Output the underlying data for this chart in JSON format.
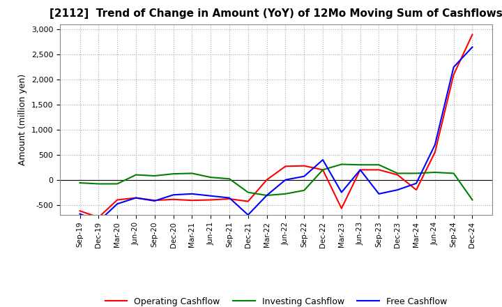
{
  "title": "[2112]  Trend of Change in Amount (YoY) of 12Mo Moving Sum of Cashflows",
  "ylabel": "Amount (million yen)",
  "ylim": [
    -700,
    3100
  ],
  "yticks": [
    -500,
    0,
    500,
    1000,
    1500,
    2000,
    2500,
    3000
  ],
  "background_color": "#ffffff",
  "grid_color": "#aaaaaa",
  "x_labels": [
    "Sep-19",
    "Dec-19",
    "Mar-20",
    "Jun-20",
    "Sep-20",
    "Dec-20",
    "Mar-21",
    "Jun-21",
    "Sep-21",
    "Dec-21",
    "Mar-22",
    "Jun-22",
    "Sep-22",
    "Dec-22",
    "Mar-23",
    "Jun-23",
    "Sep-23",
    "Dec-23",
    "Mar-24",
    "Jun-24",
    "Sep-24",
    "Dec-24"
  ],
  "operating_cashflow": [
    -620,
    -750,
    -400,
    -360,
    -410,
    -390,
    -410,
    -400,
    -380,
    -430,
    0,
    270,
    280,
    200,
    -570,
    200,
    200,
    100,
    -200,
    550,
    2100,
    2900
  ],
  "investing_cashflow": [
    -60,
    -80,
    -80,
    100,
    80,
    120,
    130,
    50,
    20,
    -250,
    -310,
    -280,
    -210,
    200,
    310,
    300,
    300,
    130,
    130,
    150,
    130,
    -400
  ],
  "free_cashflow": [
    -680,
    -830,
    -480,
    -360,
    -420,
    -300,
    -280,
    -320,
    -360,
    -700,
    -310,
    0,
    70,
    400,
    -250,
    200,
    -280,
    -200,
    -70,
    700,
    2250,
    2650
  ],
  "operating_color": "#ff0000",
  "investing_color": "#008000",
  "free_color": "#0000ff",
  "line_width": 1.5
}
